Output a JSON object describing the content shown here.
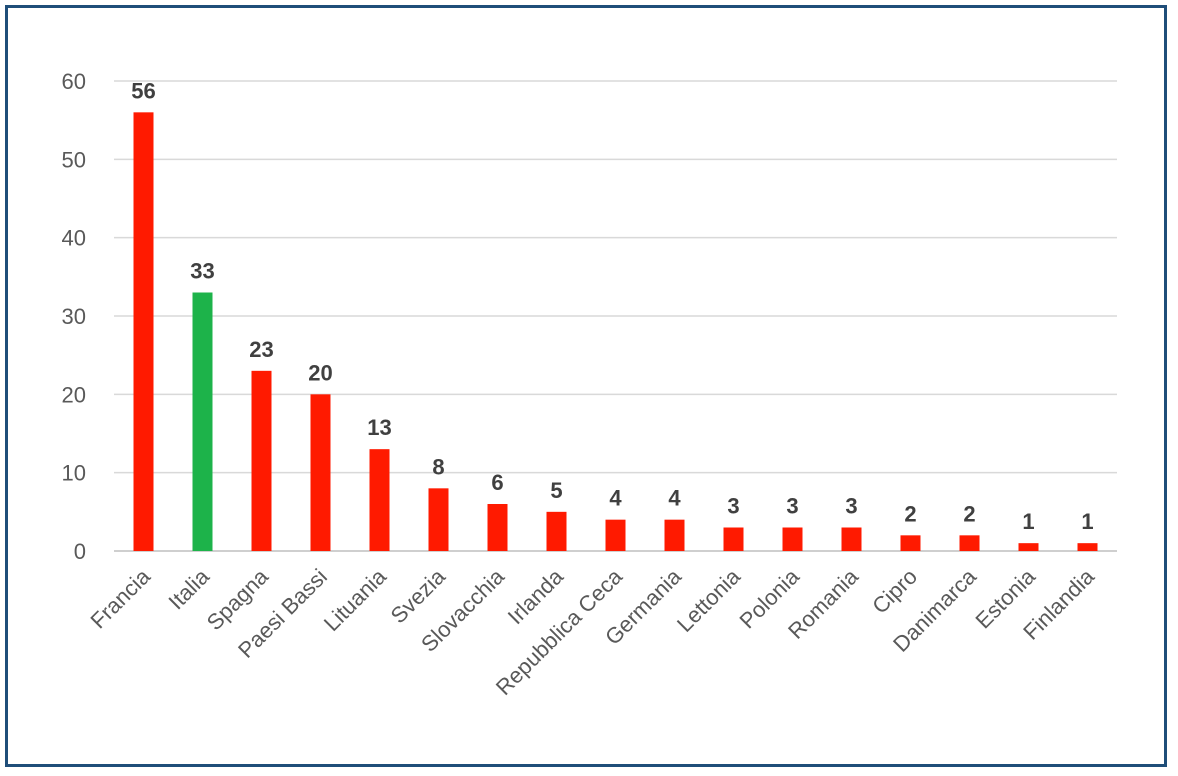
{
  "chart_data": {
    "type": "bar",
    "title": "",
    "xlabel": "",
    "ylabel": "",
    "ylim": [
      0,
      60
    ],
    "yticks": [
      0,
      10,
      20,
      30,
      40,
      50,
      60
    ],
    "grid": true,
    "categories": [
      "Francia",
      "Italia",
      "Spagna",
      "Paesi Bassi",
      "Lituania",
      "Svezia",
      "Slovacchia",
      "Irlanda",
      "Repubblica Ceca",
      "Germania",
      "Lettonia",
      "Polonia",
      "Romania",
      "Cipro",
      "Danimarca",
      "Estonia",
      "Finlandia"
    ],
    "values": [
      56,
      33,
      23,
      20,
      13,
      8,
      6,
      5,
      4,
      4,
      3,
      3,
      3,
      2,
      2,
      1,
      1
    ],
    "colors": [
      "#ff1a00",
      "#1db34a",
      "#ff1a00",
      "#ff1a00",
      "#ff1a00",
      "#ff1a00",
      "#ff1a00",
      "#ff1a00",
      "#ff1a00",
      "#ff1a00",
      "#ff1a00",
      "#ff1a00",
      "#ff1a00",
      "#ff1a00",
      "#ff1a00",
      "#ff1a00",
      "#ff1a00"
    ],
    "data_labels": true
  }
}
